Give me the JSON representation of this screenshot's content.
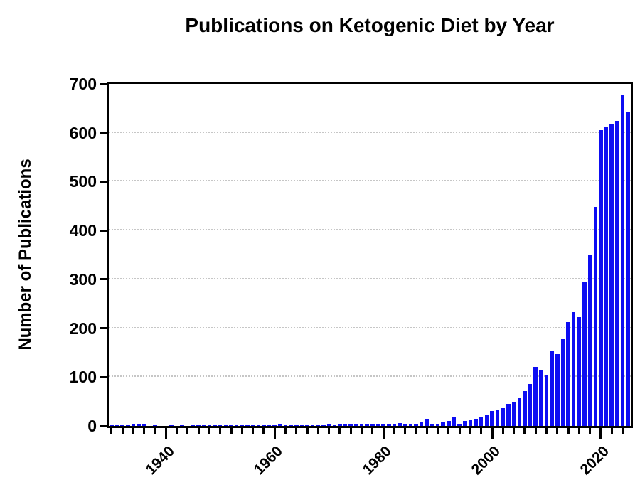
{
  "chart_data": {
    "type": "bar",
    "title": "Publications on Ketogenic Diet by Year",
    "xlabel": "",
    "ylabel": "Number of Publications",
    "ylim": [
      0,
      700
    ],
    "yticks": [
      0,
      100,
      200,
      300,
      400,
      500,
      600,
      700
    ],
    "xtick_label_years": [
      1940,
      1960,
      1980,
      2000,
      2020
    ],
    "minor_xtick_interval_years": 2,
    "grid": "horizontal dotted lines at each 100, drawn behind bars",
    "legend": "none",
    "bar_color": "#0d0df2",
    "frame_color": "#000000",
    "gridline_color": "#c6c6c6",
    "years": [
      1930,
      1931,
      1932,
      1933,
      1934,
      1935,
      1936,
      1937,
      1938,
      1939,
      1940,
      1941,
      1942,
      1943,
      1944,
      1945,
      1946,
      1947,
      1948,
      1949,
      1950,
      1951,
      1952,
      1953,
      1954,
      1955,
      1956,
      1957,
      1958,
      1959,
      1960,
      1961,
      1962,
      1963,
      1964,
      1965,
      1966,
      1967,
      1968,
      1969,
      1970,
      1971,
      1972,
      1973,
      1974,
      1975,
      1976,
      1977,
      1978,
      1979,
      1980,
      1981,
      1982,
      1983,
      1984,
      1985,
      1986,
      1987,
      1988,
      1989,
      1990,
      1991,
      1992,
      1993,
      1994,
      1995,
      1996,
      1997,
      1998,
      1999,
      2000,
      2001,
      2002,
      2003,
      2004,
      2005,
      2006,
      2007,
      2008,
      2009,
      2010,
      2011,
      2012,
      2013,
      2014,
      2015,
      2016,
      2017,
      2018,
      2019,
      2020,
      2021,
      2022,
      2023,
      2024,
      2025
    ],
    "values": [
      2,
      2,
      1,
      1,
      5,
      3,
      3,
      0,
      1,
      0,
      0,
      1,
      0,
      1,
      0,
      1,
      2,
      1,
      2,
      1,
      1,
      2,
      1,
      1,
      2,
      1,
      1,
      1,
      1,
      1,
      1,
      3,
      1,
      1,
      2,
      2,
      2,
      2,
      2,
      2,
      3,
      2,
      4,
      3,
      3,
      3,
      3,
      3,
      5,
      3,
      4,
      4,
      4,
      6,
      5,
      4,
      4,
      7,
      13,
      5,
      4,
      7,
      10,
      18,
      5,
      10,
      11,
      15,
      17,
      23,
      31,
      33,
      36,
      45,
      50,
      57,
      71,
      86,
      121,
      115,
      105,
      153,
      147,
      177,
      212,
      233,
      223,
      294,
      349,
      448,
      606,
      613,
      618,
      625,
      678,
      642
    ]
  }
}
